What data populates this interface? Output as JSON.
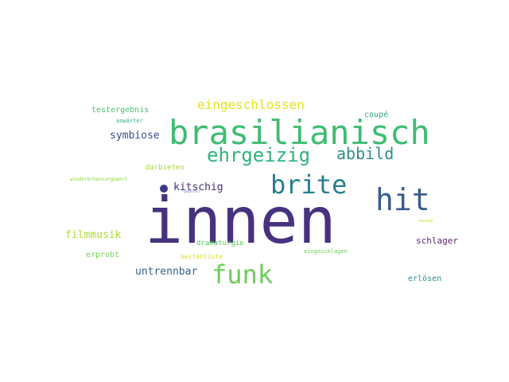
{
  "words": [
    {
      "text": "innen",
      "color": "#46327e"
    },
    {
      "text": "brasilianisch",
      "color": "#3fbc73"
    },
    {
      "text": "hit",
      "color": "#365c8d"
    },
    {
      "text": "brite",
      "color": "#277f8e"
    },
    {
      "text": "funk",
      "color": "#6ccd5a"
    },
    {
      "text": "ehrgeizig",
      "color": "#2eb37c"
    },
    {
      "text": "abbild",
      "color": "#2e8f8c"
    },
    {
      "text": "eingeschlossen",
      "color": "#e3e418"
    },
    {
      "text": "symbiose",
      "color": "#3e4c8a"
    },
    {
      "text": "kitschig",
      "color": "#472e7c"
    },
    {
      "text": "untrennbar",
      "color": "#33638d"
    },
    {
      "text": "filmmusik",
      "color": "#addc30"
    },
    {
      "text": "schlager",
      "color": "#5a1f6d"
    },
    {
      "text": "testergebnis",
      "color": "#4ac16d"
    },
    {
      "text": "coupé",
      "color": "#25ac82"
    },
    {
      "text": "darbieten",
      "color": "#a8db34"
    },
    {
      "text": "erprobt",
      "color": "#75d054"
    },
    {
      "text": "dramaturgie",
      "color": "#58c765"
    },
    {
      "text": "erlösen",
      "color": "#2a8f8c"
    },
    {
      "text": "anwärter",
      "color": "#2db27d"
    },
    {
      "text": "wiedererkennungswert",
      "color": "#90d743"
    },
    {
      "text": "bestenliste",
      "color": "#e0e31c"
    },
    {
      "text": "eingeschlagen",
      "color": "#6ece58"
    },
    {
      "text": "gepunkt",
      "color": "#8a9bd6"
    },
    {
      "text": "zoning",
      "color": "#c8e020"
    }
  ],
  "dot_color": "#3b3a85"
}
